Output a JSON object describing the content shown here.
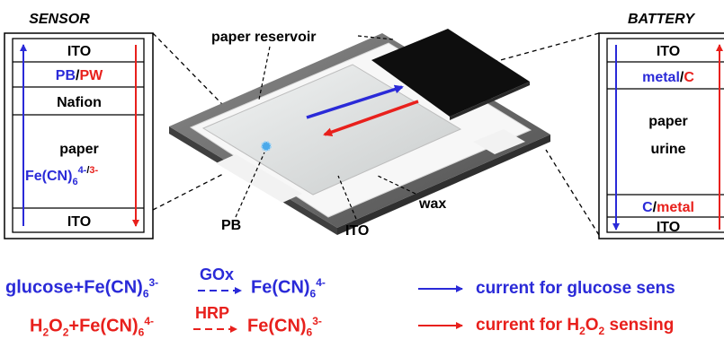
{
  "sensor": {
    "title": "SENSOR",
    "layers": {
      "ito_top": "ITO",
      "pb": "PB",
      "sep": "/",
      "pw": "PW",
      "nafion": "Nafion",
      "paper": "paper",
      "fecn_base": "Fe(CN)",
      "fecn_sub": "6",
      "fecn_sup_a": "4-",
      "fecn_sup_sep": "/",
      "fecn_sup_b": "3-",
      "ito_bottom": "ITO"
    }
  },
  "battery": {
    "title": "BATTERY",
    "layers": {
      "ito_top": "ITO",
      "metal": "metal",
      "sep1": "/",
      "c": "C",
      "paper": "paper",
      "urine": "urine",
      "c2": "C",
      "sep2": "/",
      "metal2": "metal",
      "ito_bottom": "ITO"
    }
  },
  "device": {
    "paper_reservoir": "paper reservoir",
    "pb": "PB",
    "ito": "ITO",
    "wax": "wax"
  },
  "equations": {
    "glucose": {
      "lhs": "glucose+Fe(CN)",
      "lhs_sub": "6",
      "lhs_sup": "3-",
      "enzyme": "GOx",
      "rhs": "Fe(CN)",
      "rhs_sub": "6",
      "rhs_sup": "4-"
    },
    "h2o2": {
      "h": "H",
      "h_sub": "2",
      "o": "O",
      "o_sub": "2",
      "plus": "+Fe(CN)",
      "lhs_sub": "6",
      "lhs_sup": "4-",
      "enzyme": "HRP",
      "rhs": "Fe(CN)",
      "rhs_sub": "6",
      "rhs_sup": "3-"
    }
  },
  "legend": {
    "glucose_current": "current for glucose sens",
    "h2o2_pre": "current for H",
    "h2o2_sub1": "2",
    "h2o2_mid": "O",
    "h2o2_sub2": "2",
    "h2o2_post": " sensing"
  },
  "colors": {
    "blue": "#2a2ad8",
    "red": "#e8201c",
    "electrode_dark": "#111111",
    "device_grey": "#6b6b6b"
  }
}
